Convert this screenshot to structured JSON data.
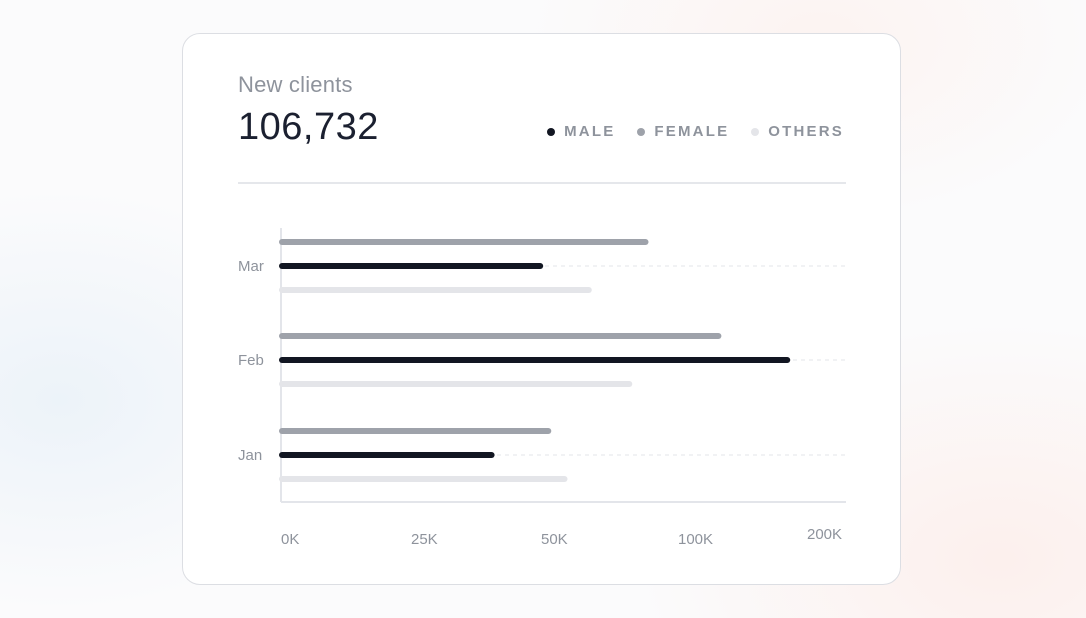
{
  "card": {
    "title": "New clients",
    "total": "106,732"
  },
  "legend": [
    {
      "label": "MALE",
      "color": "#121622"
    },
    {
      "label": "FEMALE",
      "color": "#9ea2aa"
    },
    {
      "label": "OTHERS",
      "color": "#e4e5e9"
    }
  ],
  "chart_data": {
    "type": "bar",
    "orientation": "horizontal",
    "categories": [
      "Mar",
      "Feb",
      "Jan"
    ],
    "series": [
      {
        "name": "FEMALE",
        "color": "#9ea2aa",
        "values": [
          90000,
          108000,
          66000
        ]
      },
      {
        "name": "MALE",
        "color": "#121622",
        "values": [
          64000,
          125000,
          52000
        ]
      },
      {
        "name": "OTHERS",
        "color": "#e4e5e9",
        "values": [
          76000,
          86000,
          70000
        ]
      }
    ],
    "x_ticks": [
      "0K",
      "25K",
      "50K",
      "100K",
      "200K"
    ],
    "xlim": [
      0,
      140000
    ],
    "grid": "dashed horizontal per category",
    "legend": "top-right"
  }
}
